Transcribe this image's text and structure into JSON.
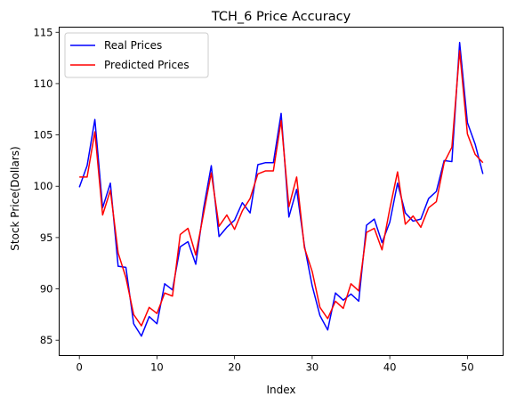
{
  "chart_data": {
    "type": "line",
    "title": "TCH_6 Price Accuracy",
    "xlabel": "Index",
    "ylabel": "Stock Price(Dollars)",
    "xlim": [
      -2.6,
      54.6
    ],
    "ylim": [
      83.5,
      115.5
    ],
    "xticks": [
      0,
      10,
      20,
      30,
      40,
      50
    ],
    "yticks": [
      85,
      90,
      95,
      100,
      105,
      110,
      115
    ],
    "grid": false,
    "legend_position": "top-left",
    "series": [
      {
        "name": "Real Prices",
        "color": "#0000ff",
        "x": [
          0,
          1,
          2,
          3,
          4,
          5,
          6,
          7,
          8,
          9,
          10,
          11,
          12,
          13,
          14,
          15,
          16,
          17,
          18,
          19,
          20,
          21,
          22,
          23,
          24,
          25,
          26,
          27,
          28,
          29,
          30,
          31,
          32,
          33,
          34,
          35,
          36,
          37,
          38,
          39,
          40,
          41,
          42,
          43,
          44,
          45,
          46,
          47,
          48,
          49,
          50,
          51,
          52
        ],
        "y": [
          99.9,
          102.0,
          106.5,
          97.9,
          100.3,
          92.2,
          92.1,
          86.6,
          85.4,
          87.3,
          86.6,
          90.5,
          89.9,
          94.1,
          94.6,
          92.4,
          97.8,
          102.0,
          95.1,
          96.0,
          96.7,
          98.4,
          97.4,
          102.1,
          102.3,
          102.3,
          107.1,
          97.0,
          99.7,
          94.2,
          90.3,
          87.4,
          86.0,
          89.6,
          88.9,
          89.5,
          88.8,
          96.2,
          96.8,
          94.5,
          96.5,
          100.3,
          97.4,
          96.6,
          96.8,
          98.8,
          99.5,
          102.5,
          102.4,
          114.0,
          106.2,
          104.1,
          101.2
        ]
      },
      {
        "name": "Predicted Prices",
        "color": "#ff0000",
        "x": [
          0,
          1,
          2,
          3,
          4,
          5,
          6,
          7,
          8,
          9,
          10,
          11,
          12,
          13,
          14,
          15,
          16,
          17,
          18,
          19,
          20,
          21,
          22,
          23,
          24,
          25,
          26,
          27,
          28,
          29,
          30,
          31,
          32,
          33,
          34,
          35,
          36,
          37,
          38,
          39,
          40,
          41,
          42,
          43,
          44,
          45,
          46,
          47,
          48,
          49,
          50,
          51,
          52
        ],
        "y": [
          100.9,
          100.9,
          105.3,
          97.2,
          99.6,
          93.5,
          91.1,
          87.5,
          86.4,
          88.2,
          87.6,
          89.6,
          89.3,
          95.3,
          95.9,
          93.3,
          97.3,
          101.3,
          96.1,
          97.2,
          95.8,
          97.6,
          98.8,
          101.2,
          101.5,
          101.5,
          106.4,
          98.0,
          100.9,
          94.0,
          91.7,
          88.2,
          87.1,
          88.8,
          88.1,
          90.5,
          89.8,
          95.5,
          95.9,
          93.8,
          97.8,
          101.4,
          96.3,
          97.1,
          96.0,
          97.9,
          98.5,
          102.3,
          103.8,
          113.2,
          105.1,
          103.1,
          102.3
        ]
      }
    ]
  }
}
